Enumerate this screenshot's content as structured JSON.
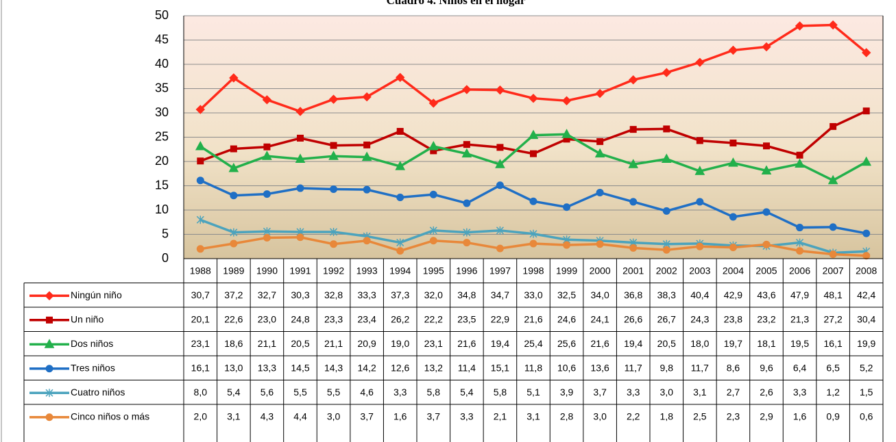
{
  "chart_data": {
    "type": "line",
    "title": "Cuadro 4. Niños en el hogar",
    "categories": [
      "1988",
      "1989",
      "1990",
      "1991",
      "1992",
      "1993",
      "1994",
      "1995",
      "1996",
      "1997",
      "1998",
      "1999",
      "2000",
      "2001",
      "2002",
      "2003",
      "2004",
      "2005",
      "2006",
      "2007",
      "2008"
    ],
    "ylim": [
      0,
      50
    ],
    "yticks": [
      0,
      5,
      10,
      15,
      20,
      25,
      30,
      35,
      40,
      45,
      50
    ],
    "grid": true,
    "series": [
      {
        "name": "Ningún niño",
        "color": "#ff2a1a",
        "marker": "diamond",
        "values": [
          30.7,
          37.2,
          32.7,
          30.3,
          32.8,
          33.3,
          37.3,
          32.0,
          34.8,
          34.7,
          33.0,
          32.5,
          34.0,
          36.8,
          38.3,
          40.4,
          42.9,
          43.6,
          47.9,
          48.1,
          42.4
        ],
        "value_labels": [
          "30,7",
          "37,2",
          "32,7",
          "30,3",
          "32,8",
          "33,3",
          "37,3",
          "32,0",
          "34,8",
          "34,7",
          "33,0",
          "32,5",
          "34,0",
          "36,8",
          "38,3",
          "40,4",
          "42,9",
          "43,6",
          "47,9",
          "48,1",
          "42,4"
        ]
      },
      {
        "name": "Un niño",
        "color": "#c00000",
        "marker": "square",
        "values": [
          20.1,
          22.6,
          23.0,
          24.8,
          23.3,
          23.4,
          26.2,
          22.2,
          23.5,
          22.9,
          21.6,
          24.6,
          24.1,
          26.6,
          26.7,
          24.3,
          23.8,
          23.2,
          21.3,
          27.2,
          30.4
        ],
        "value_labels": [
          "20,1",
          "22,6",
          "23,0",
          "24,8",
          "23,3",
          "23,4",
          "26,2",
          "22,2",
          "23,5",
          "22,9",
          "21,6",
          "24,6",
          "24,1",
          "26,6",
          "26,7",
          "24,3",
          "23,8",
          "23,2",
          "21,3",
          "27,2",
          "30,4"
        ]
      },
      {
        "name": "Dos niños",
        "color": "#22b04b",
        "marker": "triangle",
        "values": [
          23.1,
          18.6,
          21.1,
          20.5,
          21.1,
          20.9,
          19.0,
          23.1,
          21.6,
          19.4,
          25.4,
          25.6,
          21.6,
          19.4,
          20.5,
          18.0,
          19.7,
          18.1,
          19.5,
          16.1,
          19.9
        ],
        "value_labels": [
          "23,1",
          "18,6",
          "21,1",
          "20,5",
          "21,1",
          "20,9",
          "19,0",
          "23,1",
          "21,6",
          "19,4",
          "25,4",
          "25,6",
          "21,6",
          "19,4",
          "20,5",
          "18,0",
          "19,7",
          "18,1",
          "19,5",
          "16,1",
          "19,9"
        ]
      },
      {
        "name": "Tres niños",
        "color": "#1f6fc5",
        "marker": "circle",
        "values": [
          16.1,
          13.0,
          13.3,
          14.5,
          14.3,
          14.2,
          12.6,
          13.2,
          11.4,
          15.1,
          11.8,
          10.6,
          13.6,
          11.7,
          9.8,
          11.7,
          8.6,
          9.6,
          6.4,
          6.5,
          5.2
        ],
        "value_labels": [
          "16,1",
          "13,0",
          "13,3",
          "14,5",
          "14,3",
          "14,2",
          "12,6",
          "13,2",
          "11,4",
          "15,1",
          "11,8",
          "10,6",
          "13,6",
          "11,7",
          "9,8",
          "11,7",
          "8,6",
          "9,6",
          "6,4",
          "6,5",
          "5,2"
        ]
      },
      {
        "name": "Cuatro niños",
        "color": "#4ba3bd",
        "marker": "star",
        "values": [
          8.0,
          5.4,
          5.6,
          5.5,
          5.5,
          4.6,
          3.3,
          5.8,
          5.4,
          5.8,
          5.1,
          3.9,
          3.7,
          3.3,
          3.0,
          3.1,
          2.7,
          2.6,
          3.3,
          1.2,
          1.5
        ],
        "value_labels": [
          "8,0",
          "5,4",
          "5,6",
          "5,5",
          "5,5",
          "4,6",
          "3,3",
          "5,8",
          "5,4",
          "5,8",
          "5,1",
          "3,9",
          "3,7",
          "3,3",
          "3,0",
          "3,1",
          "2,7",
          "2,6",
          "3,3",
          "1,2",
          "1,5"
        ]
      },
      {
        "name": "Cinco niños o más",
        "color": "#e8883a",
        "marker": "circle",
        "values": [
          2.0,
          3.1,
          4.3,
          4.4,
          3.0,
          3.7,
          1.6,
          3.7,
          3.3,
          2.1,
          3.1,
          2.8,
          3.0,
          2.2,
          1.8,
          2.5,
          2.3,
          2.9,
          1.6,
          0.9,
          0.6
        ],
        "value_labels": [
          "2,0",
          "3,1",
          "4,3",
          "4,4",
          "3,0",
          "3,7",
          "1,6",
          "3,7",
          "3,3",
          "2,1",
          "3,1",
          "2,8",
          "3,0",
          "2,2",
          "1,8",
          "2,5",
          "2,3",
          "2,9",
          "1,6",
          "0,9",
          "0,6"
        ]
      }
    ]
  }
}
